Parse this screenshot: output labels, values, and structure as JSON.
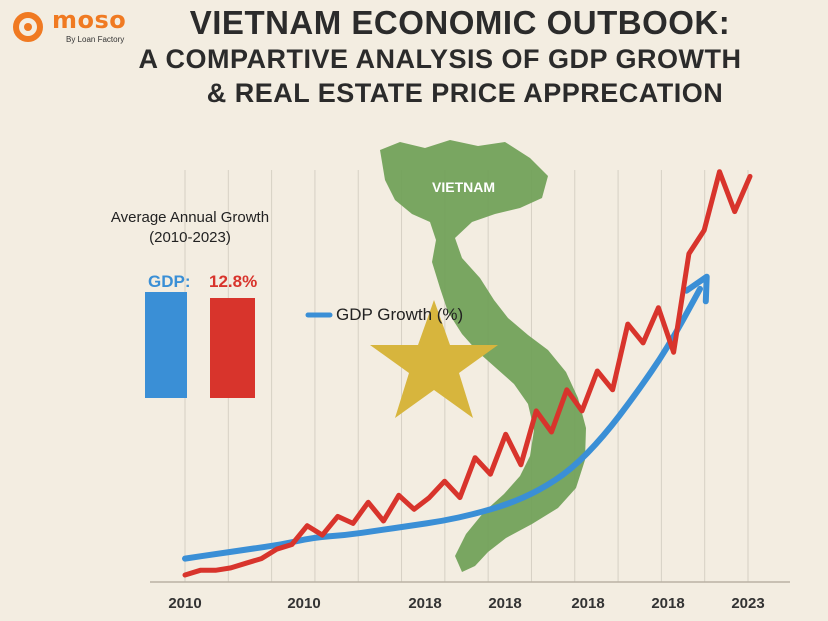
{
  "brand": {
    "name": "moso",
    "tagline": "By Loan Factory",
    "color": "#f07a22"
  },
  "title": {
    "line1": "VIETNAM ECONOMIC OUTBOOK:",
    "line2": "A COMPARTIVE ANALYSIS OF GDP GROWTH",
    "line3": "& REAL ESTATE PRICE APPRECATION"
  },
  "map": {
    "label": "VIETNAM",
    "icon": "star-icon"
  },
  "summary": {
    "title_line1": "Average Annual Growth",
    "title_line2": "(2010-2023)",
    "gdp_label": "GDP:",
    "re_value": "12.8%",
    "colors": {
      "gdp": "#3a8fd6",
      "re": "#d8342c"
    }
  },
  "chart_data": {
    "type": "line",
    "x_tick_labels": [
      "2010",
      "2010",
      "2018",
      "2018",
      "2018",
      "2018",
      "2023"
    ],
    "legend": [
      "GDP Growth (%)"
    ],
    "grid": "vertical",
    "series": [
      {
        "name": "GDP Growth (%)",
        "color": "#3a8fd6",
        "values": [
          1.0,
          1.2,
          1.4,
          1.6,
          1.9,
          2.0,
          2.2,
          2.4,
          2.6,
          2.9,
          3.3,
          3.9,
          4.8,
          6.2,
          8.0,
          10.0,
          12.5
        ]
      },
      {
        "color": "#d8342c",
        "values": [
          0.3,
          0.5,
          0.5,
          0.6,
          0.8,
          1.0,
          1.4,
          1.6,
          2.4,
          2.0,
          2.8,
          2.5,
          3.4,
          2.6,
          3.7,
          3.1,
          3.6,
          4.3,
          3.6,
          5.3,
          4.6,
          6.3,
          5.0,
          7.3,
          6.4,
          8.2,
          7.3,
          9.0,
          8.2,
          11.0,
          10.2,
          11.7,
          9.8,
          14.0,
          15.0,
          17.5,
          15.8,
          17.3
        ]
      }
    ]
  }
}
